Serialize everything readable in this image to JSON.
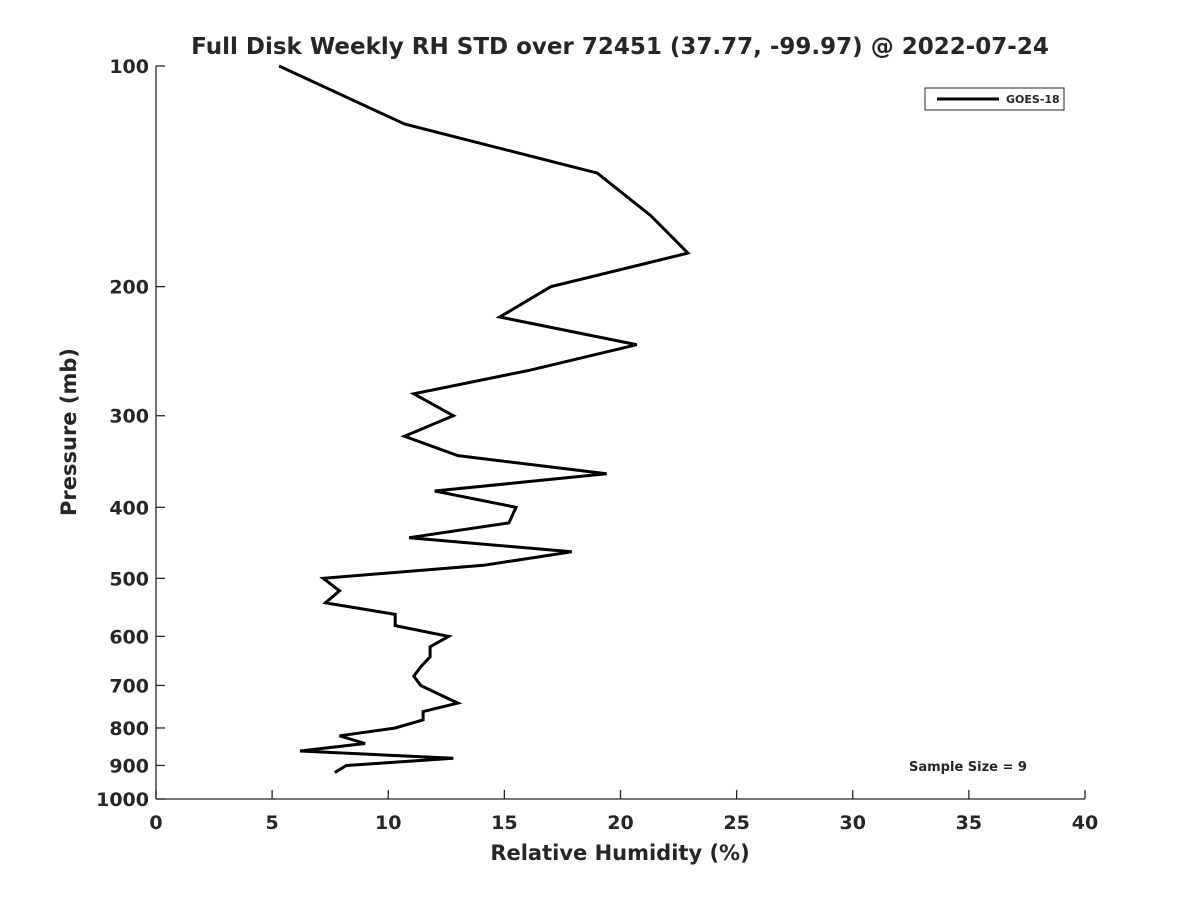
{
  "chart_data": {
    "type": "line",
    "title": "Full Disk Weekly RH STD over 72451 (37.77, -99.97) @ 2022-07-24",
    "xlabel": "Relative Humidity (%)",
    "ylabel": "Pressure (mb)",
    "xlim": [
      0,
      40
    ],
    "ylim": [
      100,
      1000
    ],
    "yscale": "log",
    "y_reversed": true,
    "grid": false,
    "xticks": [
      0,
      5,
      10,
      15,
      20,
      25,
      30,
      35,
      40
    ],
    "yticks": [
      100,
      200,
      300,
      400,
      500,
      600,
      700,
      800,
      900,
      1000
    ],
    "legend": {
      "placement": "top-right",
      "entries": [
        "GOES-18"
      ]
    },
    "annotation": "Sample Size = 9",
    "series": [
      {
        "name": "GOES-18",
        "color": "#000000",
        "pressure": [
          100,
          120,
          140,
          160,
          180,
          200,
          220,
          240,
          260,
          280,
          300,
          320,
          340,
          360,
          380,
          400,
          420,
          440,
          460,
          480,
          500,
          520,
          540,
          560,
          580,
          600,
          620,
          640,
          660,
          680,
          700,
          720,
          740,
          760,
          780,
          800,
          820,
          840,
          860,
          880,
          900,
          920
        ],
        "values": [
          5.3,
          10.7,
          19.0,
          21.3,
          22.9,
          17.0,
          14.8,
          20.7,
          16.1,
          11.1,
          12.8,
          10.7,
          13.0,
          19.4,
          12.0,
          15.5,
          15.2,
          10.9,
          17.9,
          14.1,
          7.2,
          7.9,
          7.3,
          10.3,
          10.3,
          12.6,
          11.8,
          11.8,
          11.4,
          11.1,
          11.4,
          12.2,
          13.0,
          11.5,
          11.5,
          10.3,
          7.9,
          9.0,
          6.2,
          12.8,
          8.2,
          7.7
        ]
      }
    ]
  }
}
